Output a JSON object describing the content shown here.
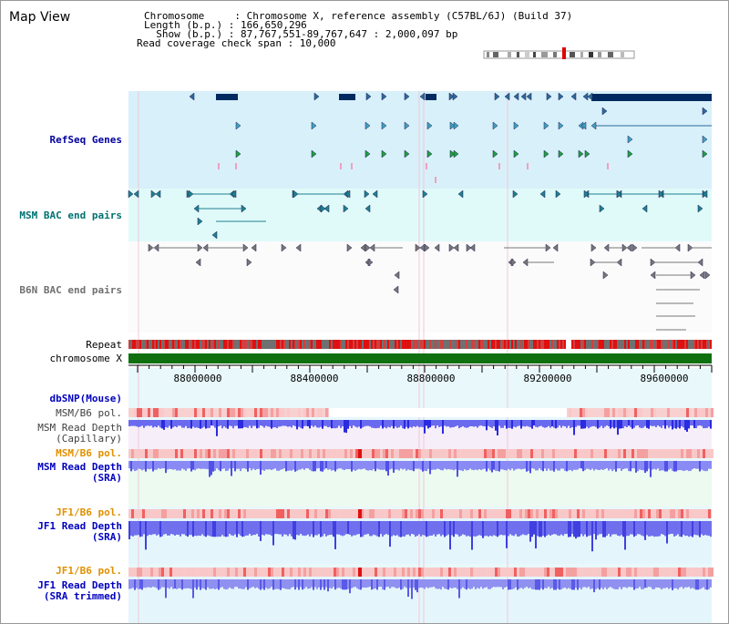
{
  "window_title": "Map View",
  "info": {
    "line1": "Chromosome     : Chromosome X, reference assembly (C57BL/6J) (Build 37)",
    "line2": "Length (b.p.) : 166,650,296",
    "line3": "  Show (b.p.) : 87,767,551-89,767,647 : 2,000,097 bp",
    "line4": "Read coverage check span : 10,000"
  },
  "tracks": {
    "refseq": "RefSeq Genes",
    "msm_bac": "MSM BAC end pairs",
    "b6n_bac": "B6N BAC end pairs",
    "repeat": "Repeat",
    "chromosome": "chromosome X",
    "dbsnp": "dbSNP(Mouse)",
    "msm_b6_pol_1": "MSM/B6 pol.",
    "msm_depth_cap": "MSM Read Depth\n(Capillary)",
    "msm_b6_pol_2": "MSM/B6 pol.",
    "msm_depth_sra": "MSM Read Depth\n(SRA)",
    "jf1_b6_pol_1": "JF1/B6 pol.",
    "jf1_depth_sra": "JF1 Read Depth\n(SRA)",
    "jf1_b6_pol_2": "JF1/B6 pol.",
    "jf1_depth_trim": "JF1 Read Depth\n(SRA trimmed)"
  },
  "axis": {
    "ticks": [
      "88000000",
      "88400000",
      "88800000",
      "89200000",
      "89600000"
    ]
  },
  "colors": {
    "refseq_bg": "#d8f0fa",
    "msm_bg": "#e0fafa",
    "depth_blue": "#2a2ae0",
    "pol_red": "#f0a0a0",
    "chromosome_green": "#107010"
  }
}
